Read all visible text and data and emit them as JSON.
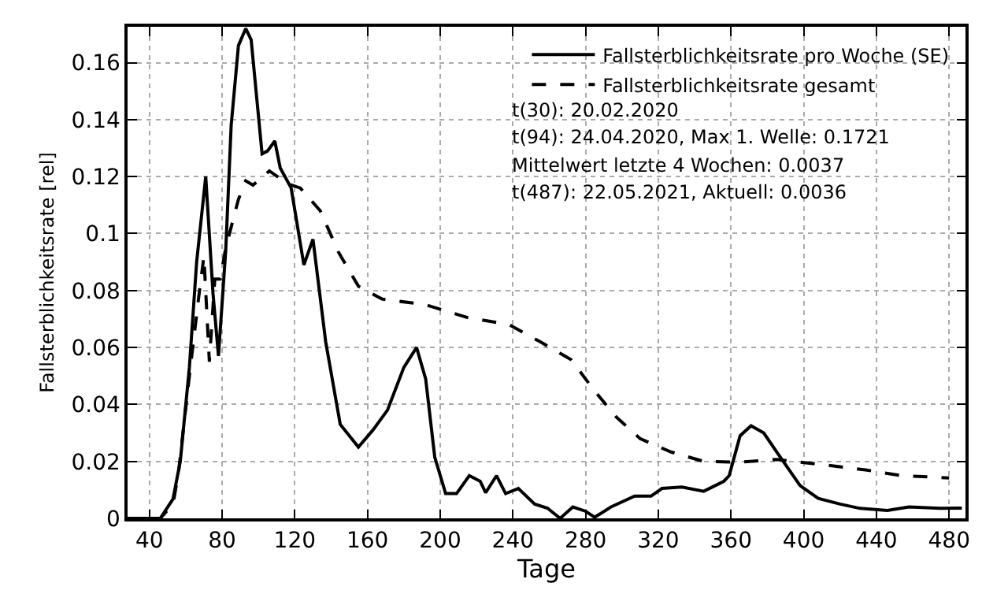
{
  "chart_data": {
    "type": "line",
    "xlabel": "Tage",
    "ylabel": "Fallsterblichkeitsrate [rel]",
    "xlim": [
      28,
      489
    ],
    "ylim": [
      0,
      0.1726
    ],
    "xticks": [
      40,
      80,
      120,
      160,
      200,
      240,
      280,
      320,
      360,
      400,
      440,
      480
    ],
    "yticks": [
      0,
      0.02,
      0.04,
      0.06,
      0.08,
      0.1,
      0.12,
      0.14,
      0.16
    ],
    "grid": true,
    "legend": "top right",
    "annotations": [
      "t(30): 20.02.2020",
      "t(94): 24.04.2020, Max 1. Welle: 0.1721",
      "Mittelwert letzte 4 Wochen: 0.0037",
      "t(487): 22.05.2021, Aktuell: 0.0036"
    ],
    "series": [
      {
        "name": "Fallsterblichkeitsrate pro Woche (SE)",
        "color": "#000000",
        "line_style": "solid",
        "x": [
          28,
          46,
          53,
          57,
          62,
          66,
          71,
          75,
          78,
          82,
          85,
          89,
          93,
          96,
          102,
          105,
          109,
          112,
          118,
          125,
          130,
          137,
          145,
          155,
          163,
          171,
          180,
          187,
          192,
          197,
          203,
          209,
          216,
          222,
          225,
          231,
          236,
          243,
          252,
          259,
          266,
          273,
          280,
          285,
          294,
          307,
          316,
          322,
          333,
          345,
          356,
          359,
          365,
          371,
          378,
          386,
          398,
          408,
          420,
          431,
          446,
          458,
          475,
          487
        ],
        "values": [
          0,
          0,
          0.0068,
          0.02,
          0.053,
          0.09,
          0.12,
          0.079,
          0.057,
          0.094,
          0.138,
          0.166,
          0.172,
          0.168,
          0.128,
          0.129,
          0.1325,
          0.123,
          0.116,
          0.089,
          0.098,
          0.062,
          0.033,
          0.025,
          0.031,
          0.038,
          0.053,
          0.06,
          0.049,
          0.0215,
          0.0087,
          0.0087,
          0.015,
          0.013,
          0.009,
          0.015,
          0.0087,
          0.0105,
          0.005,
          0.0036,
          0,
          0.004,
          0.0025,
          0.0004,
          0.004,
          0.0078,
          0.0078,
          0.0105,
          0.011,
          0.0095,
          0.013,
          0.015,
          0.029,
          0.0325,
          0.03,
          0.0225,
          0.0115,
          0.007,
          0.005,
          0.0035,
          0.0028,
          0.004,
          0.0035,
          0.0036
        ]
      },
      {
        "name": "Fallsterblichkeitsrate gesamt",
        "color": "#000000",
        "line_style": "dashed",
        "x": [
          28,
          46,
          53,
          56,
          62,
          67,
          70,
          73,
          76,
          79,
          82,
          89,
          93,
          97,
          106,
          116,
          123,
          134,
          144,
          155,
          168,
          192,
          215,
          238,
          255,
          272,
          285,
          297,
          310,
          327,
          345,
          365,
          385,
          411,
          434,
          454,
          480
        ],
        "values": [
          0,
          0,
          0.005,
          0.016,
          0.05,
          0.077,
          0.092,
          0.055,
          0.084,
          0.084,
          0.095,
          0.112,
          0.1185,
          0.117,
          0.122,
          0.1175,
          0.116,
          0.108,
          0.0935,
          0.0815,
          0.077,
          0.075,
          0.0705,
          0.068,
          0.062,
          0.0557,
          0.0447,
          0.0355,
          0.028,
          0.0233,
          0.02,
          0.0197,
          0.0207,
          0.0188,
          0.017,
          0.015,
          0.0142
        ]
      }
    ]
  }
}
